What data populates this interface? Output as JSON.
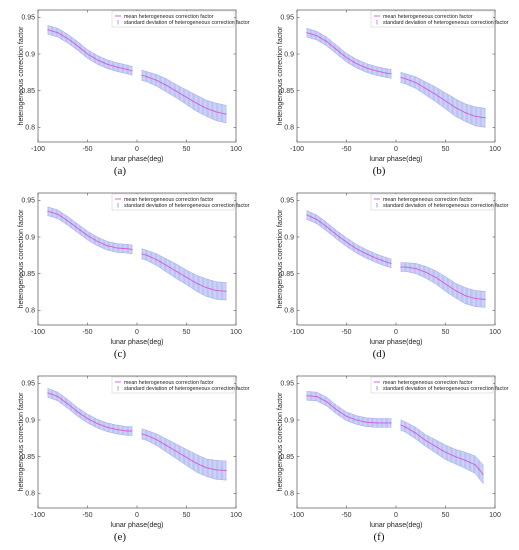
{
  "legend": {
    "mean_label": "mean heterogeneous correction factor",
    "std_label": "standard deviation of heterogeneous correction factor"
  },
  "colors": {
    "mean": "#d65ad6",
    "std": "#6d7de6",
    "axes": "#555555"
  },
  "chart_data": [
    {
      "type": "line",
      "caption": "(a)",
      "xlabel": "lunar phase(deg)",
      "ylabel": "heterogeneous correction factor",
      "xlim": [
        -100,
        100
      ],
      "ylim": [
        0.78,
        0.96
      ],
      "xticks": [
        -100,
        -50,
        0,
        50,
        100
      ],
      "yticks": [
        0.8,
        0.85,
        0.9,
        0.95
      ],
      "ytick_labels": [
        "0.8",
        "0.85",
        "0.9",
        "0.95"
      ],
      "series": [
        {
          "x": [
            -90,
            -80,
            -70,
            -60,
            -50,
            -40,
            -30,
            -20,
            -10,
            -5
          ],
          "mean": [
            0.933,
            0.929,
            0.921,
            0.911,
            0.9,
            0.892,
            0.886,
            0.882,
            0.879,
            0.877
          ],
          "std": [
            0.006,
            0.006,
            0.006,
            0.006,
            0.006,
            0.006,
            0.006,
            0.006,
            0.006,
            0.006
          ]
        },
        {
          "x": [
            5,
            10,
            20,
            30,
            40,
            50,
            60,
            70,
            80,
            90
          ],
          "mean": [
            0.871,
            0.869,
            0.864,
            0.857,
            0.849,
            0.841,
            0.833,
            0.826,
            0.821,
            0.818
          ],
          "std": [
            0.007,
            0.007,
            0.008,
            0.009,
            0.009,
            0.01,
            0.011,
            0.011,
            0.012,
            0.012
          ]
        }
      ]
    },
    {
      "type": "line",
      "caption": "(b)",
      "xlabel": "lunar phase(deg)",
      "ylabel": "heterogeneous correction factor",
      "xlim": [
        -100,
        100
      ],
      "ylim": [
        0.78,
        0.96
      ],
      "xticks": [
        -100,
        -50,
        0,
        50,
        100
      ],
      "yticks": [
        0.8,
        0.85,
        0.9,
        0.95
      ],
      "ytick_labels": [
        "0.8",
        "0.85",
        "0.9",
        "0.95"
      ],
      "series": [
        {
          "x": [
            -90,
            -80,
            -70,
            -60,
            -50,
            -40,
            -30,
            -20,
            -10,
            -5
          ],
          "mean": [
            0.929,
            0.925,
            0.917,
            0.906,
            0.895,
            0.887,
            0.881,
            0.877,
            0.874,
            0.873
          ],
          "std": [
            0.006,
            0.006,
            0.006,
            0.006,
            0.006,
            0.006,
            0.006,
            0.006,
            0.006,
            0.006
          ]
        },
        {
          "x": [
            5,
            10,
            20,
            30,
            40,
            50,
            60,
            70,
            80,
            90
          ],
          "mean": [
            0.868,
            0.866,
            0.861,
            0.853,
            0.845,
            0.836,
            0.827,
            0.82,
            0.815,
            0.813
          ],
          "std": [
            0.007,
            0.007,
            0.008,
            0.009,
            0.01,
            0.011,
            0.012,
            0.012,
            0.013,
            0.013
          ]
        }
      ]
    },
    {
      "type": "line",
      "caption": "(c)",
      "xlabel": "lunar phase(deg)",
      "ylabel": "heterogeneous correction factor",
      "xlim": [
        -100,
        100
      ],
      "ylim": [
        0.78,
        0.96
      ],
      "xticks": [
        -100,
        -50,
        0,
        50,
        100
      ],
      "yticks": [
        0.8,
        0.85,
        0.9,
        0.95
      ],
      "ytick_labels": [
        "0.8",
        "0.85",
        "0.9",
        "0.95"
      ],
      "series": [
        {
          "x": [
            -90,
            -80,
            -70,
            -60,
            -50,
            -40,
            -30,
            -20,
            -10,
            -5
          ],
          "mean": [
            0.935,
            0.931,
            0.922,
            0.912,
            0.902,
            0.894,
            0.888,
            0.885,
            0.884,
            0.883
          ],
          "std": [
            0.006,
            0.006,
            0.006,
            0.006,
            0.006,
            0.006,
            0.006,
            0.006,
            0.006,
            0.006
          ]
        },
        {
          "x": [
            5,
            10,
            20,
            30,
            40,
            50,
            60,
            70,
            80,
            90
          ],
          "mean": [
            0.877,
            0.875,
            0.869,
            0.861,
            0.853,
            0.845,
            0.837,
            0.831,
            0.827,
            0.826
          ],
          "std": [
            0.007,
            0.007,
            0.008,
            0.009,
            0.01,
            0.01,
            0.011,
            0.012,
            0.012,
            0.012
          ]
        }
      ]
    },
    {
      "type": "line",
      "caption": "(d)",
      "xlabel": "lunar phase(deg)",
      "ylabel": "heterogeneous correction factor",
      "xlim": [
        -100,
        100
      ],
      "ylim": [
        0.78,
        0.96
      ],
      "xticks": [
        -100,
        -50,
        0,
        50,
        100
      ],
      "yticks": [
        0.8,
        0.85,
        0.9,
        0.95
      ],
      "ytick_labels": [
        "0.8",
        "0.85",
        "0.9",
        "0.95"
      ],
      "series": [
        {
          "x": [
            -90,
            -80,
            -70,
            -60,
            -50,
            -40,
            -30,
            -20,
            -10,
            -5
          ],
          "mean": [
            0.93,
            0.924,
            0.914,
            0.903,
            0.893,
            0.884,
            0.877,
            0.871,
            0.866,
            0.864
          ],
          "std": [
            0.006,
            0.006,
            0.006,
            0.006,
            0.006,
            0.006,
            0.006,
            0.006,
            0.006,
            0.006
          ]
        },
        {
          "x": [
            5,
            10,
            20,
            30,
            40,
            50,
            60,
            70,
            80,
            90
          ],
          "mean": [
            0.859,
            0.859,
            0.857,
            0.852,
            0.845,
            0.836,
            0.827,
            0.82,
            0.816,
            0.815
          ],
          "std": [
            0.006,
            0.006,
            0.007,
            0.008,
            0.009,
            0.01,
            0.01,
            0.011,
            0.011,
            0.011
          ]
        }
      ]
    },
    {
      "type": "line",
      "caption": "(e)",
      "xlabel": "lunar phase(deg)",
      "ylabel": "heterogeneous correction factor",
      "xlim": [
        -100,
        100
      ],
      "ylim": [
        0.78,
        0.96
      ],
      "xticks": [
        -100,
        -50,
        0,
        50,
        100
      ],
      "yticks": [
        0.8,
        0.85,
        0.9,
        0.95
      ],
      "ytick_labels": [
        "0.8",
        "0.85",
        "0.9",
        "0.95"
      ],
      "series": [
        {
          "x": [
            -90,
            -80,
            -70,
            -60,
            -50,
            -40,
            -30,
            -20,
            -10,
            -5
          ],
          "mean": [
            0.937,
            0.932,
            0.922,
            0.911,
            0.902,
            0.895,
            0.89,
            0.887,
            0.885,
            0.885
          ],
          "std": [
            0.006,
            0.006,
            0.006,
            0.006,
            0.006,
            0.006,
            0.006,
            0.006,
            0.006,
            0.006
          ]
        },
        {
          "x": [
            5,
            10,
            20,
            30,
            40,
            50,
            60,
            70,
            80,
            90
          ],
          "mean": [
            0.881,
            0.879,
            0.873,
            0.865,
            0.857,
            0.849,
            0.841,
            0.835,
            0.832,
            0.831
          ],
          "std": [
            0.007,
            0.007,
            0.008,
            0.009,
            0.01,
            0.011,
            0.012,
            0.012,
            0.013,
            0.013
          ]
        }
      ]
    },
    {
      "type": "line",
      "caption": "(f)",
      "xlabel": "lunar phase(deg)",
      "ylabel": "heterogeneous correction factor",
      "xlim": [
        -100,
        100
      ],
      "ylim": [
        0.78,
        0.96
      ],
      "xticks": [
        -100,
        -50,
        0,
        50,
        100
      ],
      "yticks": [
        0.8,
        0.85,
        0.9,
        0.95
      ],
      "ytick_labels": [
        "0.8",
        "0.85",
        "0.9",
        "0.95"
      ],
      "series": [
        {
          "x": [
            -90,
            -80,
            -70,
            -60,
            -50,
            -40,
            -30,
            -20,
            -10,
            -5
          ],
          "mean": [
            0.933,
            0.932,
            0.925,
            0.914,
            0.905,
            0.9,
            0.897,
            0.896,
            0.896,
            0.896
          ],
          "std": [
            0.006,
            0.006,
            0.006,
            0.006,
            0.006,
            0.006,
            0.006,
            0.006,
            0.006,
            0.006
          ]
        },
        {
          "x": [
            5,
            10,
            20,
            30,
            40,
            50,
            60,
            70,
            80,
            88
          ],
          "mean": [
            0.893,
            0.89,
            0.882,
            0.872,
            0.864,
            0.856,
            0.85,
            0.845,
            0.839,
            0.826
          ],
          "std": [
            0.007,
            0.007,
            0.008,
            0.008,
            0.009,
            0.01,
            0.01,
            0.011,
            0.012,
            0.013
          ]
        }
      ]
    }
  ]
}
